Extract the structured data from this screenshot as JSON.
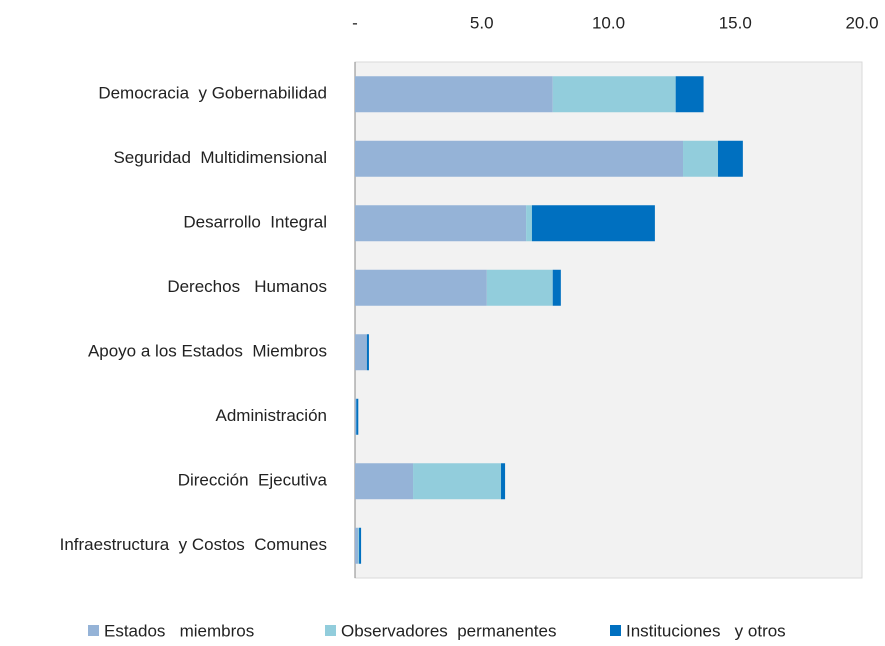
{
  "chart_data": {
    "type": "stacked-bar-horizontal",
    "categories": [
      "Democracia  y Gobernabilidad",
      "Seguridad  Multidimensional",
      "Desarrollo  Integral",
      "Derechos   Humanos",
      "Apoyo a los Estados  Miembros",
      "Administración",
      "Dirección  Ejecutiva",
      "Infraestructura  y Costos  Comunes"
    ],
    "series": [
      {
        "name": "Estados   miembros",
        "color": "#95b3d7",
        "values": [
          7.8,
          12.94,
          6.75,
          5.2,
          0.47,
          0.05,
          2.29,
          0.12
        ]
      },
      {
        "name": "Observadores  permanentes",
        "color": "#92cddc",
        "values": [
          4.85,
          1.38,
          0.23,
          2.6,
          0,
          0,
          3.47,
          0.04
        ]
      },
      {
        "name": "Instituciones   y otros",
        "color": "#0070c0",
        "values": [
          1.1,
          0.98,
          4.85,
          0.32,
          0.08,
          0.08,
          0.16,
          0.08
        ]
      }
    ],
    "xlim": [
      0,
      20
    ],
    "xticks": [
      {
        "value": 0,
        "label": "-"
      },
      {
        "value": 5,
        "label": "5.0"
      },
      {
        "value": 10,
        "label": "10.0"
      },
      {
        "value": 15,
        "label": "15.0"
      },
      {
        "value": 20,
        "label": "20.0"
      }
    ],
    "legend": "bottom"
  }
}
